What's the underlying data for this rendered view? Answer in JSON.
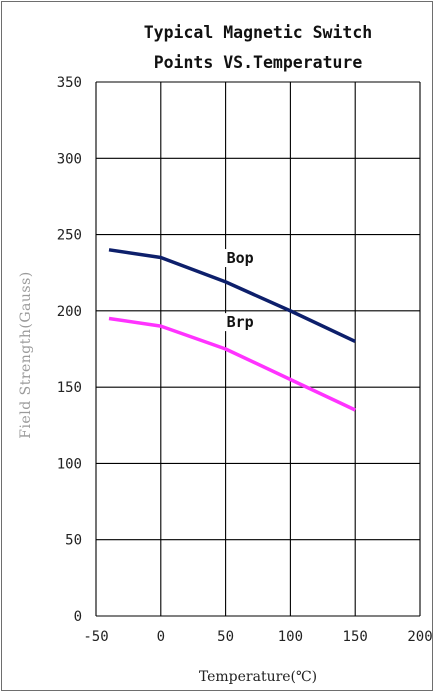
{
  "chart_data": {
    "type": "line",
    "title_line1": "Typical Magnetic Switch",
    "title_line2": "Points VS.Temperature",
    "xlabel": "Temperature(℃)",
    "ylabel": "Field Strength(Gauss)",
    "xlim": [
      -50,
      200
    ],
    "ylim": [
      0,
      350
    ],
    "xticks": [
      "-50",
      "0",
      "50",
      "100",
      "150",
      "200"
    ],
    "yticks": [
      "0",
      "50",
      "100",
      "150",
      "200",
      "250",
      "300",
      "350"
    ],
    "grid": true,
    "series": [
      {
        "name": "Bop",
        "color": "#0d1f6b",
        "x": [
          -40,
          0,
          50,
          100,
          150
        ],
        "y": [
          240,
          235,
          219,
          200,
          180
        ]
      },
      {
        "name": "Brp",
        "color": "#ff33ff",
        "x": [
          -40,
          0,
          50,
          100,
          150
        ],
        "y": [
          195,
          190,
          175,
          155,
          135
        ]
      }
    ]
  }
}
